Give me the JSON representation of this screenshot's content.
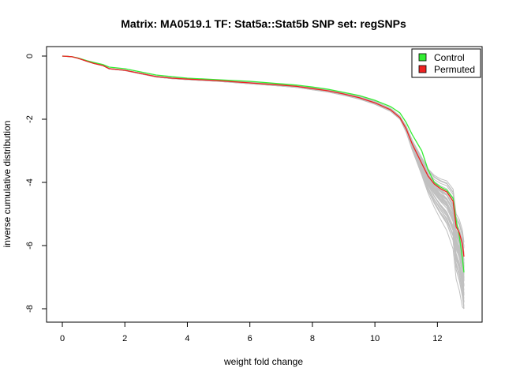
{
  "chart_data": {
    "type": "line",
    "title": "Matrix: MA0519.1 TF: Stat5a::Stat5b SNP set: regSNPs",
    "xlabel": "weight fold change",
    "ylabel": "inverse cumulative distribution",
    "xlim": [
      0,
      12.9
    ],
    "ylim": [
      -8,
      0
    ],
    "x_ticks": [
      0,
      2,
      4,
      6,
      8,
      10,
      12
    ],
    "y_ticks": [
      0,
      -2,
      -4,
      -6,
      -8
    ],
    "legend_position": "top-right",
    "legend": [
      {
        "label": "Control",
        "color": "#33ee33"
      },
      {
        "label": "Permuted",
        "color": "#ee2222"
      }
    ],
    "background_series_color": "#c0c0c0",
    "background_series_count": 40,
    "series": [
      {
        "name": "Control",
        "color": "#33ee33",
        "x": [
          0,
          0.3,
          0.5,
          0.8,
          1.0,
          1.3,
          1.5,
          2.0,
          2.5,
          3.0,
          3.5,
          4.0,
          5.0,
          6.0,
          7.0,
          7.5,
          8.0,
          8.5,
          9.0,
          9.5,
          10.0,
          10.5,
          10.8,
          11.0,
          11.2,
          11.5,
          11.7,
          11.9,
          12.1,
          12.3,
          12.5,
          12.6,
          12.7,
          12.8,
          12.85
        ],
        "y": [
          0,
          -0.02,
          -0.06,
          -0.15,
          -0.2,
          -0.27,
          -0.35,
          -0.4,
          -0.5,
          -0.6,
          -0.65,
          -0.7,
          -0.75,
          -0.8,
          -0.88,
          -0.92,
          -0.98,
          -1.05,
          -1.15,
          -1.25,
          -1.4,
          -1.6,
          -1.8,
          -2.1,
          -2.5,
          -3.0,
          -3.6,
          -4.0,
          -4.15,
          -4.25,
          -4.5,
          -5.2,
          -5.7,
          -6.4,
          -6.85
        ]
      },
      {
        "name": "Permuted",
        "color": "#ee2222",
        "x": [
          0,
          0.3,
          0.5,
          0.8,
          1.0,
          1.3,
          1.5,
          2.0,
          2.5,
          3.0,
          3.5,
          4.0,
          5.0,
          6.0,
          7.0,
          7.5,
          8.0,
          8.5,
          9.0,
          9.5,
          10.0,
          10.5,
          10.8,
          11.0,
          11.2,
          11.5,
          11.7,
          11.9,
          12.1,
          12.3,
          12.5,
          12.6,
          12.7,
          12.8,
          12.85
        ],
        "y": [
          0,
          -0.02,
          -0.07,
          -0.17,
          -0.23,
          -0.3,
          -0.4,
          -0.45,
          -0.55,
          -0.65,
          -0.7,
          -0.73,
          -0.78,
          -0.85,
          -0.92,
          -0.96,
          -1.03,
          -1.1,
          -1.2,
          -1.32,
          -1.48,
          -1.7,
          -1.95,
          -2.3,
          -2.8,
          -3.4,
          -3.8,
          -4.05,
          -4.2,
          -4.3,
          -4.6,
          -5.4,
          -5.6,
          -5.95,
          -6.35
        ]
      }
    ]
  }
}
